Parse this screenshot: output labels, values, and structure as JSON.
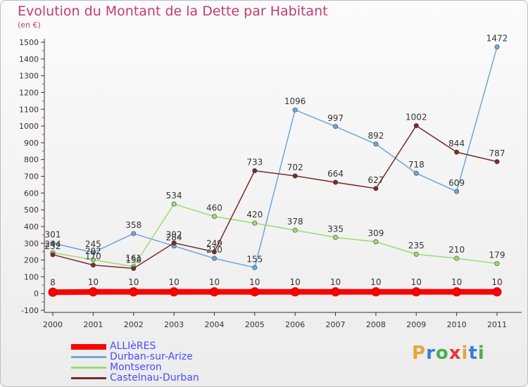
{
  "title": "Evolution du Montant de la Dette par Habitant",
  "unit_label": "(en €)",
  "brand": {
    "text": "Proxiti",
    "colors": [
      "#e8a33c",
      "#3a7fd5",
      "#4caf50",
      "#e23a3a",
      "#e8a33c",
      "#3a7fd5",
      "#4caf50"
    ]
  },
  "chart_data": {
    "type": "line",
    "x": [
      "2000",
      "2001",
      "2002",
      "2003",
      "2004",
      "2005",
      "2006",
      "2007",
      "2008",
      "2009",
      "2010",
      "2011"
    ],
    "ylim": [
      -100,
      1500
    ],
    "yticks": [
      -100,
      0,
      100,
      200,
      300,
      400,
      500,
      600,
      700,
      800,
      900,
      1000,
      1100,
      1200,
      1300,
      1400,
      1500
    ],
    "grid": false,
    "legend_position": "bottom-left",
    "series": [
      {
        "name": "ALLIèRES",
        "color": "#ff0000",
        "values": [
          8,
          10,
          10,
          10,
          10,
          10,
          10,
          10,
          10,
          10,
          10,
          10
        ]
      },
      {
        "name": "Durban-sur-Arize",
        "color": "#6ea6d9",
        "values": [
          301,
          245,
          358,
          284,
          210,
          155,
          1096,
          997,
          892,
          718,
          609,
          1472
        ]
      },
      {
        "name": "Montseron",
        "color": "#9ddc6a",
        "values": [
          244,
          202,
          161,
          534,
          460,
          420,
          378,
          335,
          309,
          235,
          210,
          179
        ]
      },
      {
        "name": "Castelnau-Durban",
        "color": "#7a2a2a",
        "values": [
          232,
          170,
          150,
          302,
          249,
          733,
          702,
          664,
          627,
          1002,
          844,
          787
        ]
      }
    ]
  }
}
